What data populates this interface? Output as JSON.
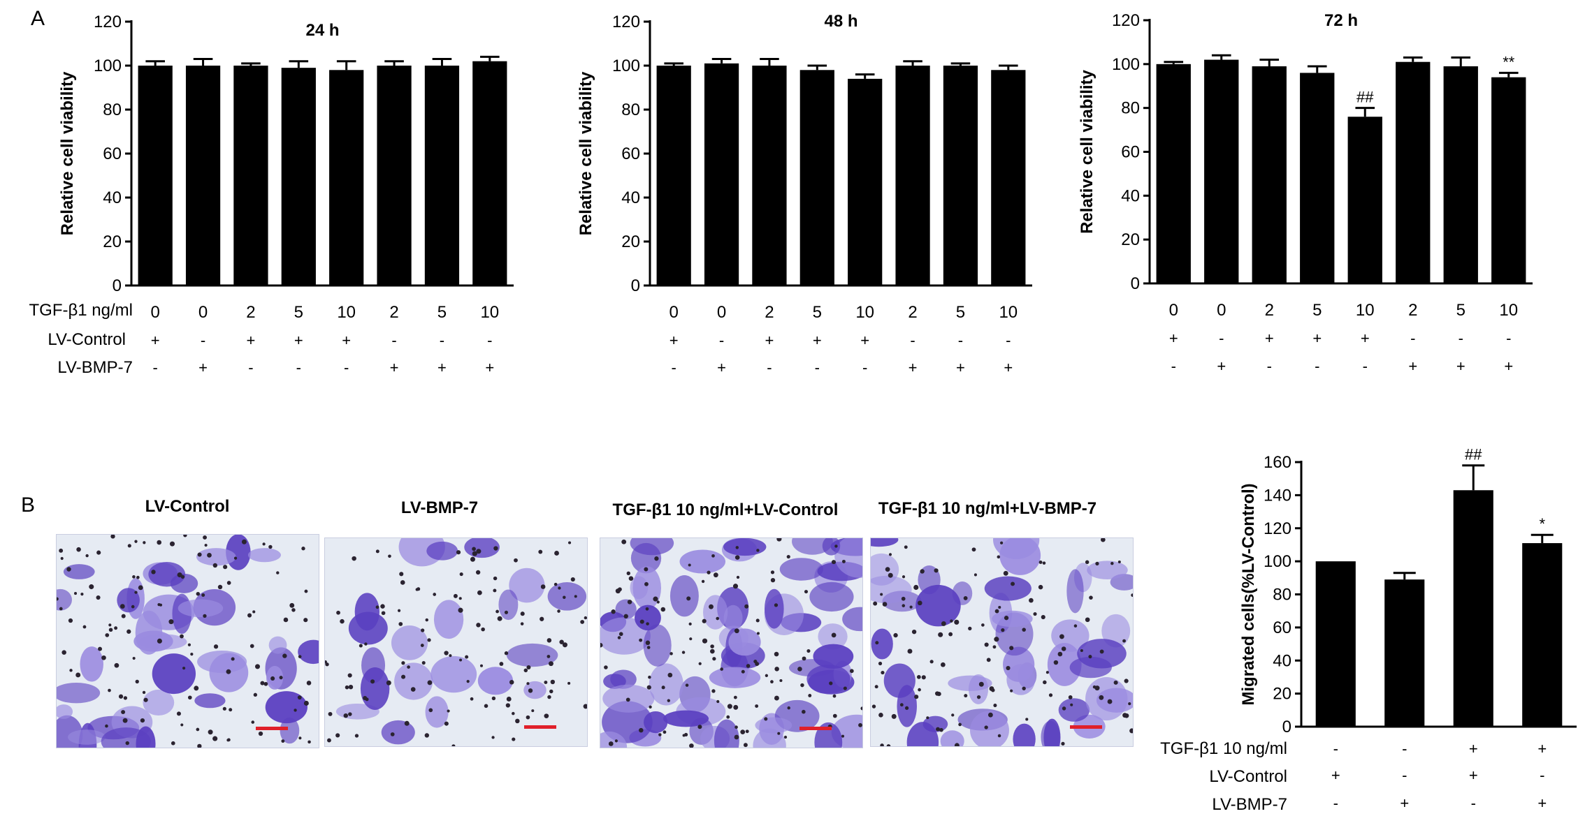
{
  "panel_a": {
    "label": "A",
    "row_labels": [
      "TGF-β1 ng/ml",
      "LV-Control",
      "LV-BMP-7"
    ],
    "charts": [
      {
        "title": "24 h",
        "ylabel": "Relative cell viability",
        "tgf": [
          "0",
          "0",
          "2",
          "5",
          "10",
          "2",
          "5",
          "10"
        ],
        "lv_control": [
          "+",
          "-",
          "+",
          "+",
          "+",
          "-",
          "-",
          "-"
        ],
        "lv_bmp7": [
          "-",
          "+",
          "-",
          "-",
          "-",
          "+",
          "+",
          "+"
        ]
      },
      {
        "title": "48 h",
        "ylabel": "Relative cell viability",
        "tgf": [
          "0",
          "0",
          "2",
          "5",
          "10",
          "2",
          "5",
          "10"
        ],
        "lv_control": [
          "+",
          "-",
          "+",
          "+",
          "+",
          "-",
          "-",
          "-"
        ],
        "lv_bmp7": [
          "-",
          "+",
          "-",
          "-",
          "-",
          "+",
          "+",
          "+"
        ]
      },
      {
        "title": "72 h",
        "ylabel": "Relative cell viability",
        "tgf": [
          "0",
          "0",
          "2",
          "5",
          "10",
          "2",
          "5",
          "10"
        ],
        "lv_control": [
          "+",
          "-",
          "+",
          "+",
          "+",
          "-",
          "-",
          "-"
        ],
        "lv_bmp7": [
          "-",
          "+",
          "-",
          "-",
          "-",
          "+",
          "+",
          "+"
        ]
      }
    ]
  },
  "panel_b": {
    "label": "B",
    "images": [
      {
        "title": "LV-Control",
        "scale_bar_color": "#e0202a"
      },
      {
        "title": "LV-BMP-7",
        "scale_bar_color": "#e0202a"
      },
      {
        "title": "TGF-β1 10 ng/ml+LV-Control",
        "scale_bar_color": "#e0202a"
      },
      {
        "title": "TGF-β1 10 ng/ml+LV-BMP-7",
        "scale_bar_color": "#e0202a"
      }
    ],
    "chart": {
      "ylabel": "Migrated cells(%LV-Control)",
      "row_labels": [
        "TGF-β1 10 ng/ml",
        "LV-Control",
        "LV-BMP-7"
      ],
      "tgf": [
        "-",
        "-",
        "+",
        "+"
      ],
      "lv_control": [
        "+",
        "-",
        "+",
        "-"
      ],
      "lv_bmp7": [
        "-",
        "+",
        "-",
        "+"
      ]
    }
  },
  "colors": {
    "bar": "#000000",
    "stain_dark": "#5a3fc0",
    "stain_light": "#9a8be0",
    "background_field": "#e6ebf3"
  },
  "chart_data": [
    {
      "type": "bar",
      "title": "24 h",
      "ylabel": "Relative cell viability",
      "ylim": [
        0,
        120
      ],
      "yticks": [
        0,
        20,
        40,
        60,
        80,
        100,
        120
      ],
      "values": [
        100,
        100,
        100,
        99,
        98,
        100,
        100,
        102
      ],
      "errors": [
        2,
        3,
        1,
        3,
        4,
        2,
        3,
        2
      ],
      "annotations": [
        "",
        "",
        "",
        "",
        "",
        "",
        "",
        ""
      ]
    },
    {
      "type": "bar",
      "title": "48 h",
      "ylabel": "Relative cell viability",
      "ylim": [
        0,
        120
      ],
      "yticks": [
        0,
        20,
        40,
        60,
        80,
        100,
        120
      ],
      "values": [
        100,
        101,
        100,
        98,
        94,
        100,
        100,
        98
      ],
      "errors": [
        1,
        2,
        3,
        2,
        2,
        2,
        1,
        2
      ],
      "annotations": [
        "",
        "",
        "",
        "",
        "",
        "",
        "",
        ""
      ]
    },
    {
      "type": "bar",
      "title": "72 h",
      "ylabel": "Relative cell viability",
      "ylim": [
        0,
        120
      ],
      "yticks": [
        0,
        20,
        40,
        60,
        80,
        100,
        120
      ],
      "values": [
        100,
        102,
        99,
        96,
        76,
        101,
        99,
        94
      ],
      "errors": [
        1,
        2,
        3,
        3,
        4,
        2,
        4,
        2
      ],
      "annotations": [
        "",
        "",
        "",
        "",
        "##",
        "",
        "",
        "**"
      ]
    },
    {
      "type": "bar",
      "title": "",
      "ylabel": "Migrated cells(%LV-Control)",
      "ylim": [
        0,
        160
      ],
      "yticks": [
        0,
        20,
        40,
        60,
        80,
        100,
        120,
        140,
        160
      ],
      "values": [
        100,
        89,
        143,
        111
      ],
      "errors": [
        0,
        4,
        15,
        5
      ],
      "annotations": [
        "",
        "",
        "##",
        "*"
      ]
    }
  ]
}
